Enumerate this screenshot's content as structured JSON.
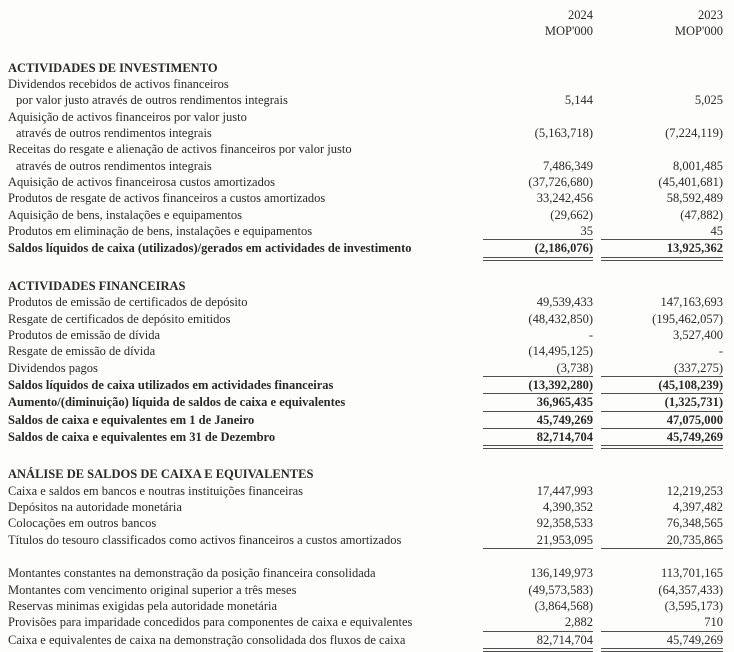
{
  "header": {
    "col1_year": "2024",
    "col2_year": "2023",
    "col1_unit": "MOP'000",
    "col2_unit": "MOP'000"
  },
  "colors": {
    "page_background": "#fdfdfb",
    "text": "#2a2a2a",
    "rule": "#4f4f4f"
  },
  "sections": [
    {
      "title": "ACTIVIDADES DE INVESTIMENTO",
      "rows": [
        {
          "label": "Dividendos recebidos de activos financeiros",
          "v1": "",
          "v2": ""
        },
        {
          "label": "por valor justo através de outros rendimentos integrais",
          "indent": true,
          "v1": "5,144",
          "v2": "5,025"
        },
        {
          "label": "Aquisição de activos financeiros por valor justo",
          "v1": "",
          "v2": ""
        },
        {
          "label": "através de outros rendimentos integrais",
          "indent": true,
          "v1": "(5,163,718)",
          "v2": "(7,224,119)"
        },
        {
          "label": "Receitas do resgate e alienação de activos financeiros por valor justo",
          "v1": "",
          "v2": ""
        },
        {
          "label": "através de outros rendimentos integrais",
          "indent": true,
          "v1": "7,486,349",
          "v2": "8,001,485"
        },
        {
          "label": "Aquisição de activos financeirosa custos amortizados",
          "v1": "(37,726,680)",
          "v2": "(45,401,681)"
        },
        {
          "label": "Produtos de resgate de activos financeiros a custos amortizados",
          "v1": "33,242,456",
          "v2": "58,592,489"
        },
        {
          "label": "Aquisição de bens, instalações e equipamentos",
          "v1": "(29,662)",
          "v2": "(47,882)"
        },
        {
          "label": "Produtos em eliminação de bens, instalações e equipamentos",
          "v1": "35",
          "v2": "45",
          "rule": "single"
        },
        {
          "label": "Saldos líquidos de caixa (utilizados)/gerados em actividades de investimento",
          "bold": true,
          "v1": "(2,186,076)",
          "v2": "13,925,362",
          "rule": "double"
        }
      ]
    },
    {
      "title": "ACTIVIDADES FINANCEIRAS",
      "rows": [
        {
          "label": "Produtos de emissão de certificados de depósito",
          "v1": "49,539,433",
          "v2": "147,163,693"
        },
        {
          "label": "Resgate de certificados de depósito emitidos",
          "v1": "(48,432,850)",
          "v2": "(195,462,057)"
        },
        {
          "label": "Produtos de emissão de dívida",
          "v1": "-",
          "v2": "3,527,400"
        },
        {
          "label": "Resgate de emissão de dívida",
          "v1": "(14,495,125)",
          "v2": "-"
        },
        {
          "label": "Dividendos pagos",
          "v1": "(3,738)",
          "v2": "(337,275)",
          "rule": "single"
        },
        {
          "label": "Saldos líquidos de caixa utilizados em actividades financeiras",
          "bold": true,
          "v1": "(13,392,280)",
          "v2": "(45,108,239)",
          "rule": "single"
        },
        {
          "label": "Aumento/(diminuição) líquida de saldos de caixa e equivalentes",
          "bold": true,
          "v1": "36,965,435",
          "v2": "(1,325,731)",
          "rule": "single"
        },
        {
          "label": "Saldos de caixa e equivalentes em 1 de Janeiro",
          "bold": true,
          "v1": "45,749,269",
          "v2": "47,075,000",
          "rule": "single"
        },
        {
          "label": "Saldos de caixa e equivalentes em 31 de Dezembro",
          "bold": true,
          "v1": "82,714,704",
          "v2": "45,749,269",
          "rule": "double"
        }
      ]
    },
    {
      "title": "ANÁLISE DE SALDOS DE CAIXA E EQUIVALENTES",
      "rows": [
        {
          "label": "Caixa e saldos em bancos e noutras instituições financeiras",
          "v1": "17,447,993",
          "v2": "12,219,253"
        },
        {
          "label": "Depósitos na autoridade monetária",
          "v1": "4,390,352",
          "v2": "4,397,482"
        },
        {
          "label": "Colocações em outros bancos",
          "v1": "92,358,533",
          "v2": "76,348,565"
        },
        {
          "label": "Títulos do tesouro classificados como activos financeiros a custos amortizados",
          "v1": "21,953,095",
          "v2": "20,735,865",
          "rule": "single"
        },
        {
          "spacer": true
        },
        {
          "label": "Montantes constantes na demonstração da posição financeira consolidada",
          "v1": "136,149,973",
          "v2": "113,701,165"
        },
        {
          "label": "Montantes com vencimento original superior a três meses",
          "v1": "(49,573,583)",
          "v2": "(64,357,433)"
        },
        {
          "label": "Reservas minimas exigidas pela autoridade monetária",
          "v1": "(3,864,568)",
          "v2": "(3,595,173)"
        },
        {
          "label": "Provisões para imparidade concedidos para componentes de caixa e equivalentes",
          "v1": "2,882",
          "v2": "710",
          "rule": "single"
        },
        {
          "label": "Caixa e equivalentes de caixa na demonstração consolidada dos fluxos de caixa",
          "v1": "82,714,704",
          "v2": "45,749,269",
          "rule": "double"
        }
      ]
    }
  ]
}
